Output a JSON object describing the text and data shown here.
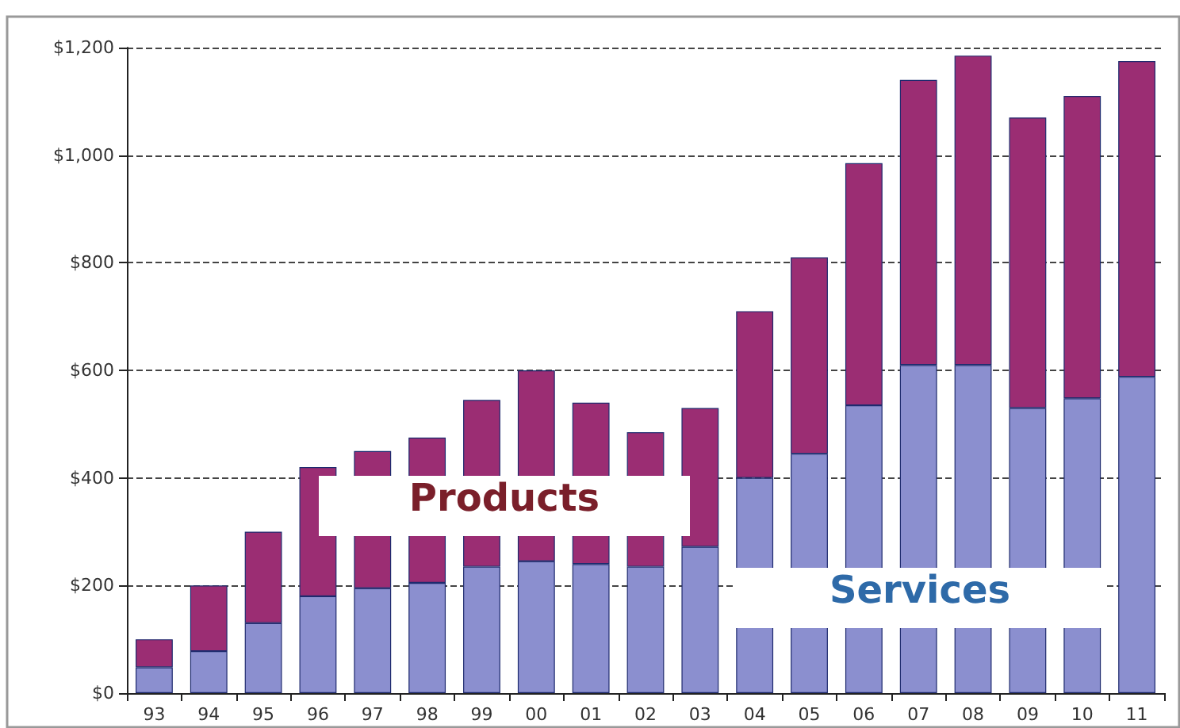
{
  "chart_data": {
    "type": "bar",
    "stacked": true,
    "grid": "y",
    "legend": false,
    "categories": [
      "93",
      "94",
      "95",
      "96",
      "97",
      "98",
      "99",
      "00",
      "01",
      "02",
      "03",
      "04",
      "05",
      "06",
      "07",
      "08",
      "09",
      "10",
      "11"
    ],
    "series": [
      {
        "name": "Services",
        "color": "#8b8fcf",
        "values": [
          48,
          78,
          130,
          180,
          195,
          205,
          235,
          245,
          240,
          235,
          272,
          400,
          445,
          535,
          610,
          610,
          530,
          548,
          588
        ]
      },
      {
        "name": "Products",
        "color": "#9b2d73",
        "values": [
          52,
          122,
          170,
          240,
          255,
          270,
          310,
          355,
          300,
          250,
          258,
          310,
          365,
          450,
          530,
          575,
          540,
          562,
          587
        ]
      }
    ],
    "ylim": [
      0,
      1200
    ],
    "yticks": [
      {
        "value": 0,
        "label": "$0"
      },
      {
        "value": 200,
        "label": "$200"
      },
      {
        "value": 400,
        "label": "$400"
      },
      {
        "value": 600,
        "label": "$600"
      },
      {
        "value": 800,
        "label": "$800"
      },
      {
        "value": 1000,
        "label": "$1,000"
      },
      {
        "value": 1200,
        "label": "$1,200"
      }
    ]
  }
}
